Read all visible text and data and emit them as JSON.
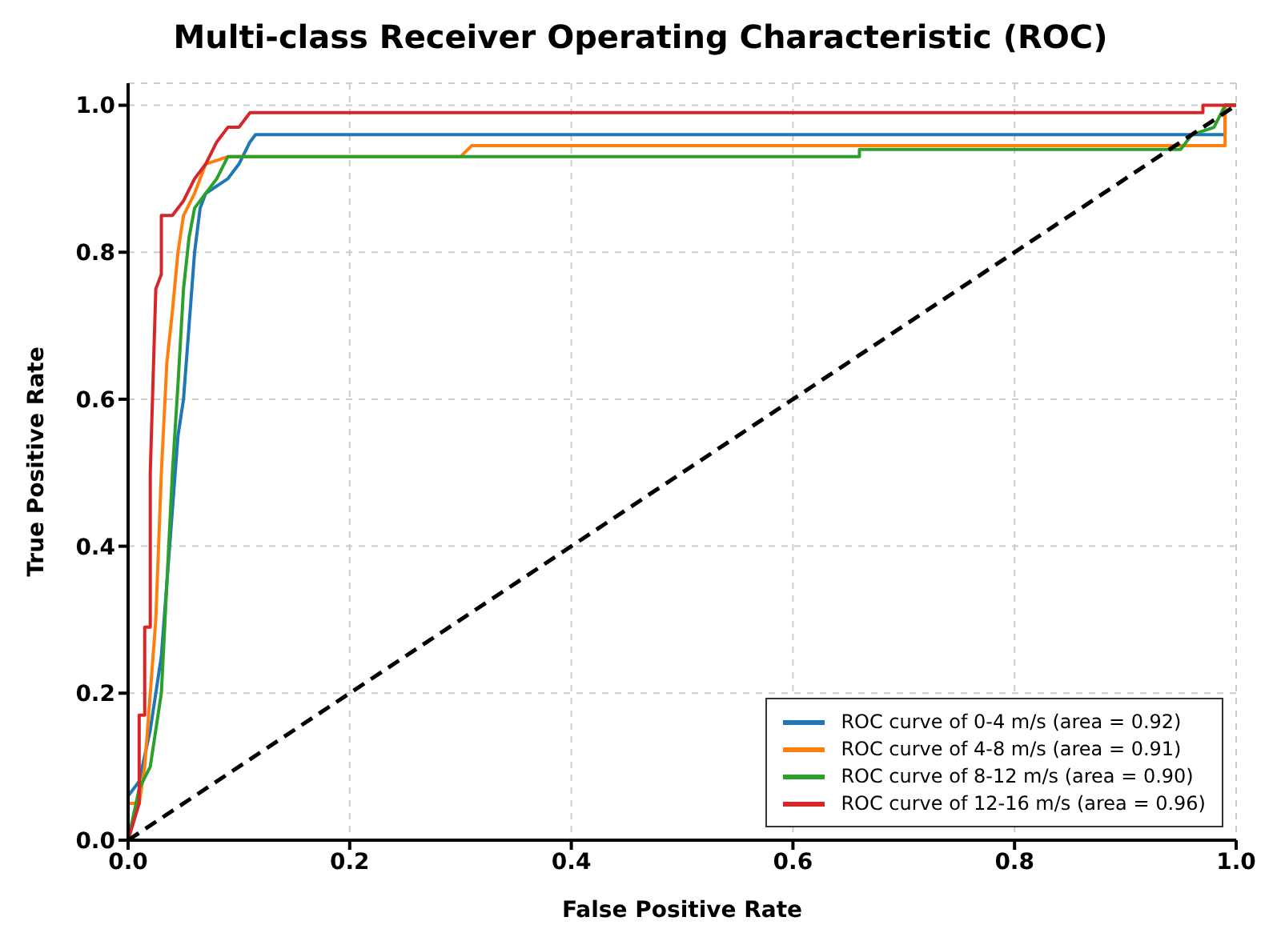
{
  "chart_data": {
    "type": "line",
    "title": "Multi-class Receiver Operating Characteristic (ROC)",
    "xlabel": "False Positive Rate",
    "ylabel": "True Positive Rate",
    "xlim": [
      0,
      1
    ],
    "ylim": [
      0,
      1.03
    ],
    "xticks": [
      {
        "value": 0,
        "label": "0.0"
      },
      {
        "value": 0.2,
        "label": "0.2"
      },
      {
        "value": 0.4,
        "label": "0.4"
      },
      {
        "value": 0.6,
        "label": "0.6"
      },
      {
        "value": 0.8,
        "label": "0.8"
      },
      {
        "value": 1,
        "label": "1.0"
      }
    ],
    "yticks": [
      {
        "value": 0,
        "label": "0.0"
      },
      {
        "value": 0.2,
        "label": "0.2"
      },
      {
        "value": 0.4,
        "label": "0.4"
      },
      {
        "value": 0.6,
        "label": "0.6"
      },
      {
        "value": 0.8,
        "label": "0.8"
      },
      {
        "value": 1,
        "label": "1.0"
      }
    ],
    "grid": true,
    "legend": "bottom right",
    "marker": "none",
    "series": [
      {
        "name": "ROC curve of 0-4 m/s (area = 0.92)",
        "color": "#1f77b4",
        "x": [
          0,
          0,
          0.01,
          0.02,
          0.03,
          0.04,
          0.045,
          0.05,
          0.055,
          0.06,
          0.065,
          0.07,
          0.09,
          0.1,
          0.11,
          0.115,
          0.99,
          0.99,
          1
        ],
        "values": [
          0,
          0.06,
          0.08,
          0.15,
          0.25,
          0.45,
          0.55,
          0.6,
          0.7,
          0.8,
          0.86,
          0.88,
          0.9,
          0.92,
          0.95,
          0.96,
          0.96,
          1,
          1
        ]
      },
      {
        "name": "ROC curve of 4-8 m/s (area = 0.91)",
        "color": "#ff7f0e",
        "x": [
          0,
          0,
          0.01,
          0.015,
          0.02,
          0.025,
          0.03,
          0.035,
          0.04,
          0.045,
          0.05,
          0.06,
          0.07,
          0.09,
          0.3,
          0.31,
          0.99,
          0.99,
          1
        ],
        "values": [
          0,
          0.05,
          0.05,
          0.1,
          0.2,
          0.3,
          0.5,
          0.65,
          0.72,
          0.8,
          0.85,
          0.88,
          0.92,
          0.93,
          0.93,
          0.945,
          0.945,
          1,
          1
        ]
      },
      {
        "name": "ROC curve of 8-12 m/s (area = 0.90)",
        "color": "#2ca02c",
        "x": [
          0,
          0.01,
          0.02,
          0.03,
          0.035,
          0.04,
          0.045,
          0.05,
          0.055,
          0.06,
          0.07,
          0.08,
          0.09,
          0.66,
          0.66,
          0.95,
          0.96,
          0.98,
          0.99,
          1
        ],
        "values": [
          0,
          0.07,
          0.1,
          0.2,
          0.35,
          0.5,
          0.62,
          0.75,
          0.82,
          0.86,
          0.88,
          0.9,
          0.93,
          0.93,
          0.94,
          0.94,
          0.96,
          0.97,
          1,
          1
        ]
      },
      {
        "name": "ROC curve of 12-16 m/s (area = 0.96)",
        "color": "#d62728",
        "x": [
          0,
          0.01,
          0.01,
          0.015,
          0.015,
          0.02,
          0.02,
          0.025,
          0.03,
          0.03,
          0.04,
          0.05,
          0.06,
          0.07,
          0.08,
          0.09,
          0.1,
          0.11,
          0.97,
          0.97,
          1
        ],
        "values": [
          0,
          0.05,
          0.17,
          0.17,
          0.29,
          0.29,
          0.5,
          0.75,
          0.77,
          0.85,
          0.85,
          0.87,
          0.9,
          0.92,
          0.95,
          0.97,
          0.97,
          0.99,
          0.99,
          1,
          1
        ]
      },
      {
        "color": "#000000",
        "line_style": "dashed",
        "x": [
          0,
          1
        ],
        "values": [
          0,
          1
        ]
      }
    ]
  }
}
